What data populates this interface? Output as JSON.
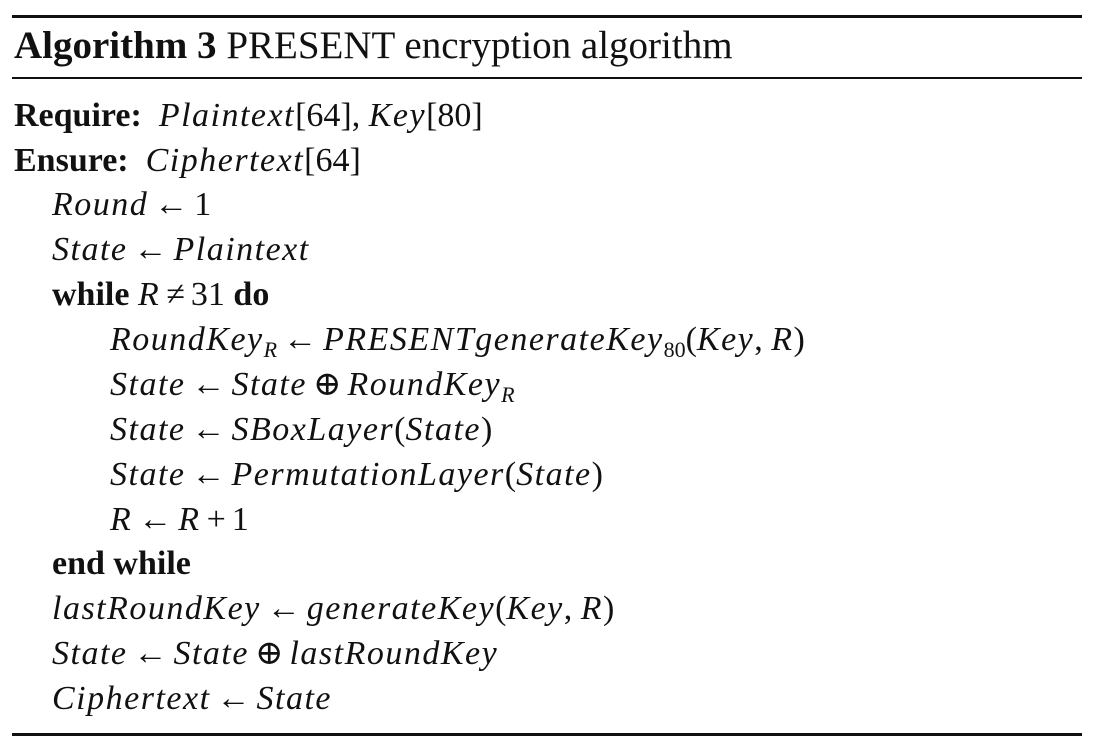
{
  "algorithm": {
    "label": "Algorithm 3",
    "title": "PRESENT encryption algorithm",
    "require_kw": "Require:",
    "ensure_kw": "Ensure:",
    "while_kw": "while",
    "do_kw": "do",
    "end_while_kw": "end while",
    "arrow": "←",
    "xor": "⊕",
    "neq": "≠",
    "plus": "+",
    "vars": {
      "Plaintext": "Plaintext",
      "Key": "Key",
      "Ciphertext": "Ciphertext",
      "Round": "Round",
      "State": "State",
      "R": "R",
      "RoundKey": "RoundKey",
      "PRESENTgenerateKey": "PRESENTgenerateKey",
      "SBoxLayer": "SBoxLayer",
      "PermutationLayer": "PermutationLayer",
      "lastRoundKey": "lastRoundKey",
      "generateKey": "generateKey"
    },
    "nums": {
      "plaintext_size": "[64]",
      "key_size": "[80]",
      "ciphertext_size": "[64]",
      "round_init": "1",
      "round_limit": "31",
      "keygen_sub": "80",
      "increment": "1"
    }
  }
}
